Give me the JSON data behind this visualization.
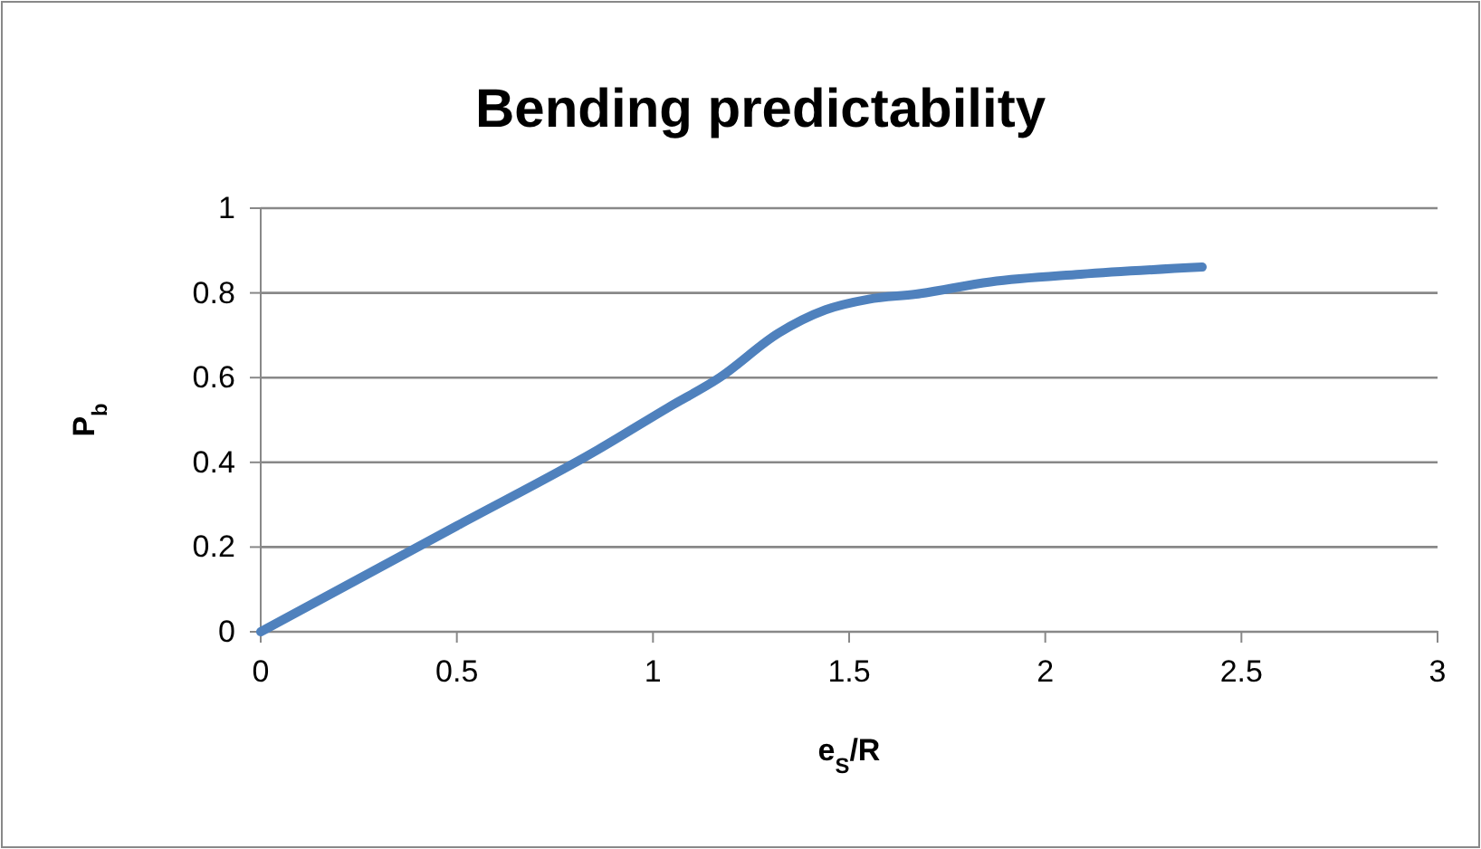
{
  "chart_data": {
    "type": "line",
    "title": "Bending predictability",
    "xlabel": "e$_{S}$/R",
    "ylabel": "P$_{b}$",
    "x": [
      0,
      0.5,
      0.86,
      1.04,
      1.17,
      1.32,
      1.44,
      1.55,
      1.67,
      1.86,
      2.09,
      2.4
    ],
    "series": [
      {
        "color": "#4f81bd",
        "values": [
          0,
          0.25,
          0.43,
          0.53,
          0.6,
          0.705,
          0.76,
          0.785,
          0.797,
          0.826,
          0.844,
          0.861
        ]
      }
    ],
    "xlim": [
      0,
      3
    ],
    "xticks": [
      0,
      0.5,
      1,
      1.5,
      2,
      2.5,
      3
    ],
    "ylim": [
      0,
      1
    ],
    "yticks": [
      0,
      0.2,
      0.4,
      0.6,
      0.8,
      1
    ],
    "grid": "y",
    "marker": "none",
    "line_style": "solid"
  }
}
